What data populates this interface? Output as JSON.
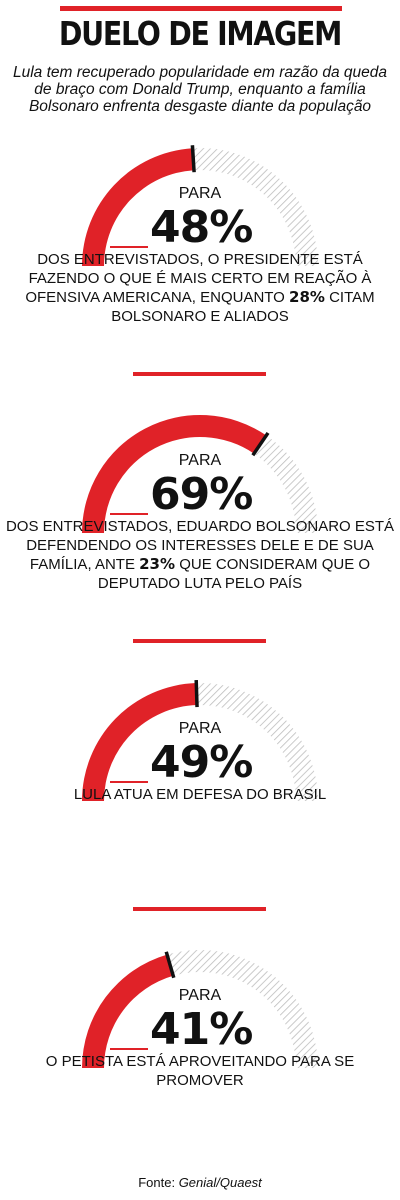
{
  "title": "DUELO DE IMAGEM",
  "subtitle": "Lula tem recuperado popularidade em razão da queda de braço com Donald Trump, enquanto a família Bolsonaro enfrenta desgaste diante da população",
  "para_label": "PARA",
  "colors": {
    "accent": "#e02228",
    "remainder": "#bdbdbd",
    "marker": "#111111"
  },
  "chart_data": [
    {
      "type": "gauge",
      "value": 48,
      "max": 100,
      "value_label": "48%",
      "text_before": "DOS ENTREVISTADOS, O PRESIDENTE ESTÁ FAZENDO O QUE É MAIS CERTO EM REAÇÃO À OFENSIVA AMERICANA, ENQUANTO",
      "highlight": "28%",
      "text_after": "CITAM BOLSONARO E ALIADOS"
    },
    {
      "type": "gauge",
      "value": 69,
      "max": 100,
      "value_label": "69%",
      "text_before": "DOS ENTREVISTADOS, EDUARDO BOLSONARO ESTÁ DEFENDENDO OS INTERESSES DELE E DE SUA FAMÍLIA, ANTE",
      "highlight": "23%",
      "text_after": "QUE CONSIDERAM QUE O DEPUTADO LUTA PELO PAÍS"
    },
    {
      "type": "gauge",
      "value": 49,
      "max": 100,
      "value_label": "49%",
      "text_before": "LULA ATUA EM DEFESA DO BRASIL",
      "highlight": "",
      "text_after": ""
    },
    {
      "type": "gauge",
      "value": 41,
      "max": 100,
      "value_label": "41%",
      "text_before": "O PETISTA ESTÁ APROVEITANDO PARA SE PROMOVER",
      "highlight": "",
      "text_after": ""
    }
  ],
  "source": {
    "label": "Fonte:",
    "name": "Genial/Quaest"
  }
}
